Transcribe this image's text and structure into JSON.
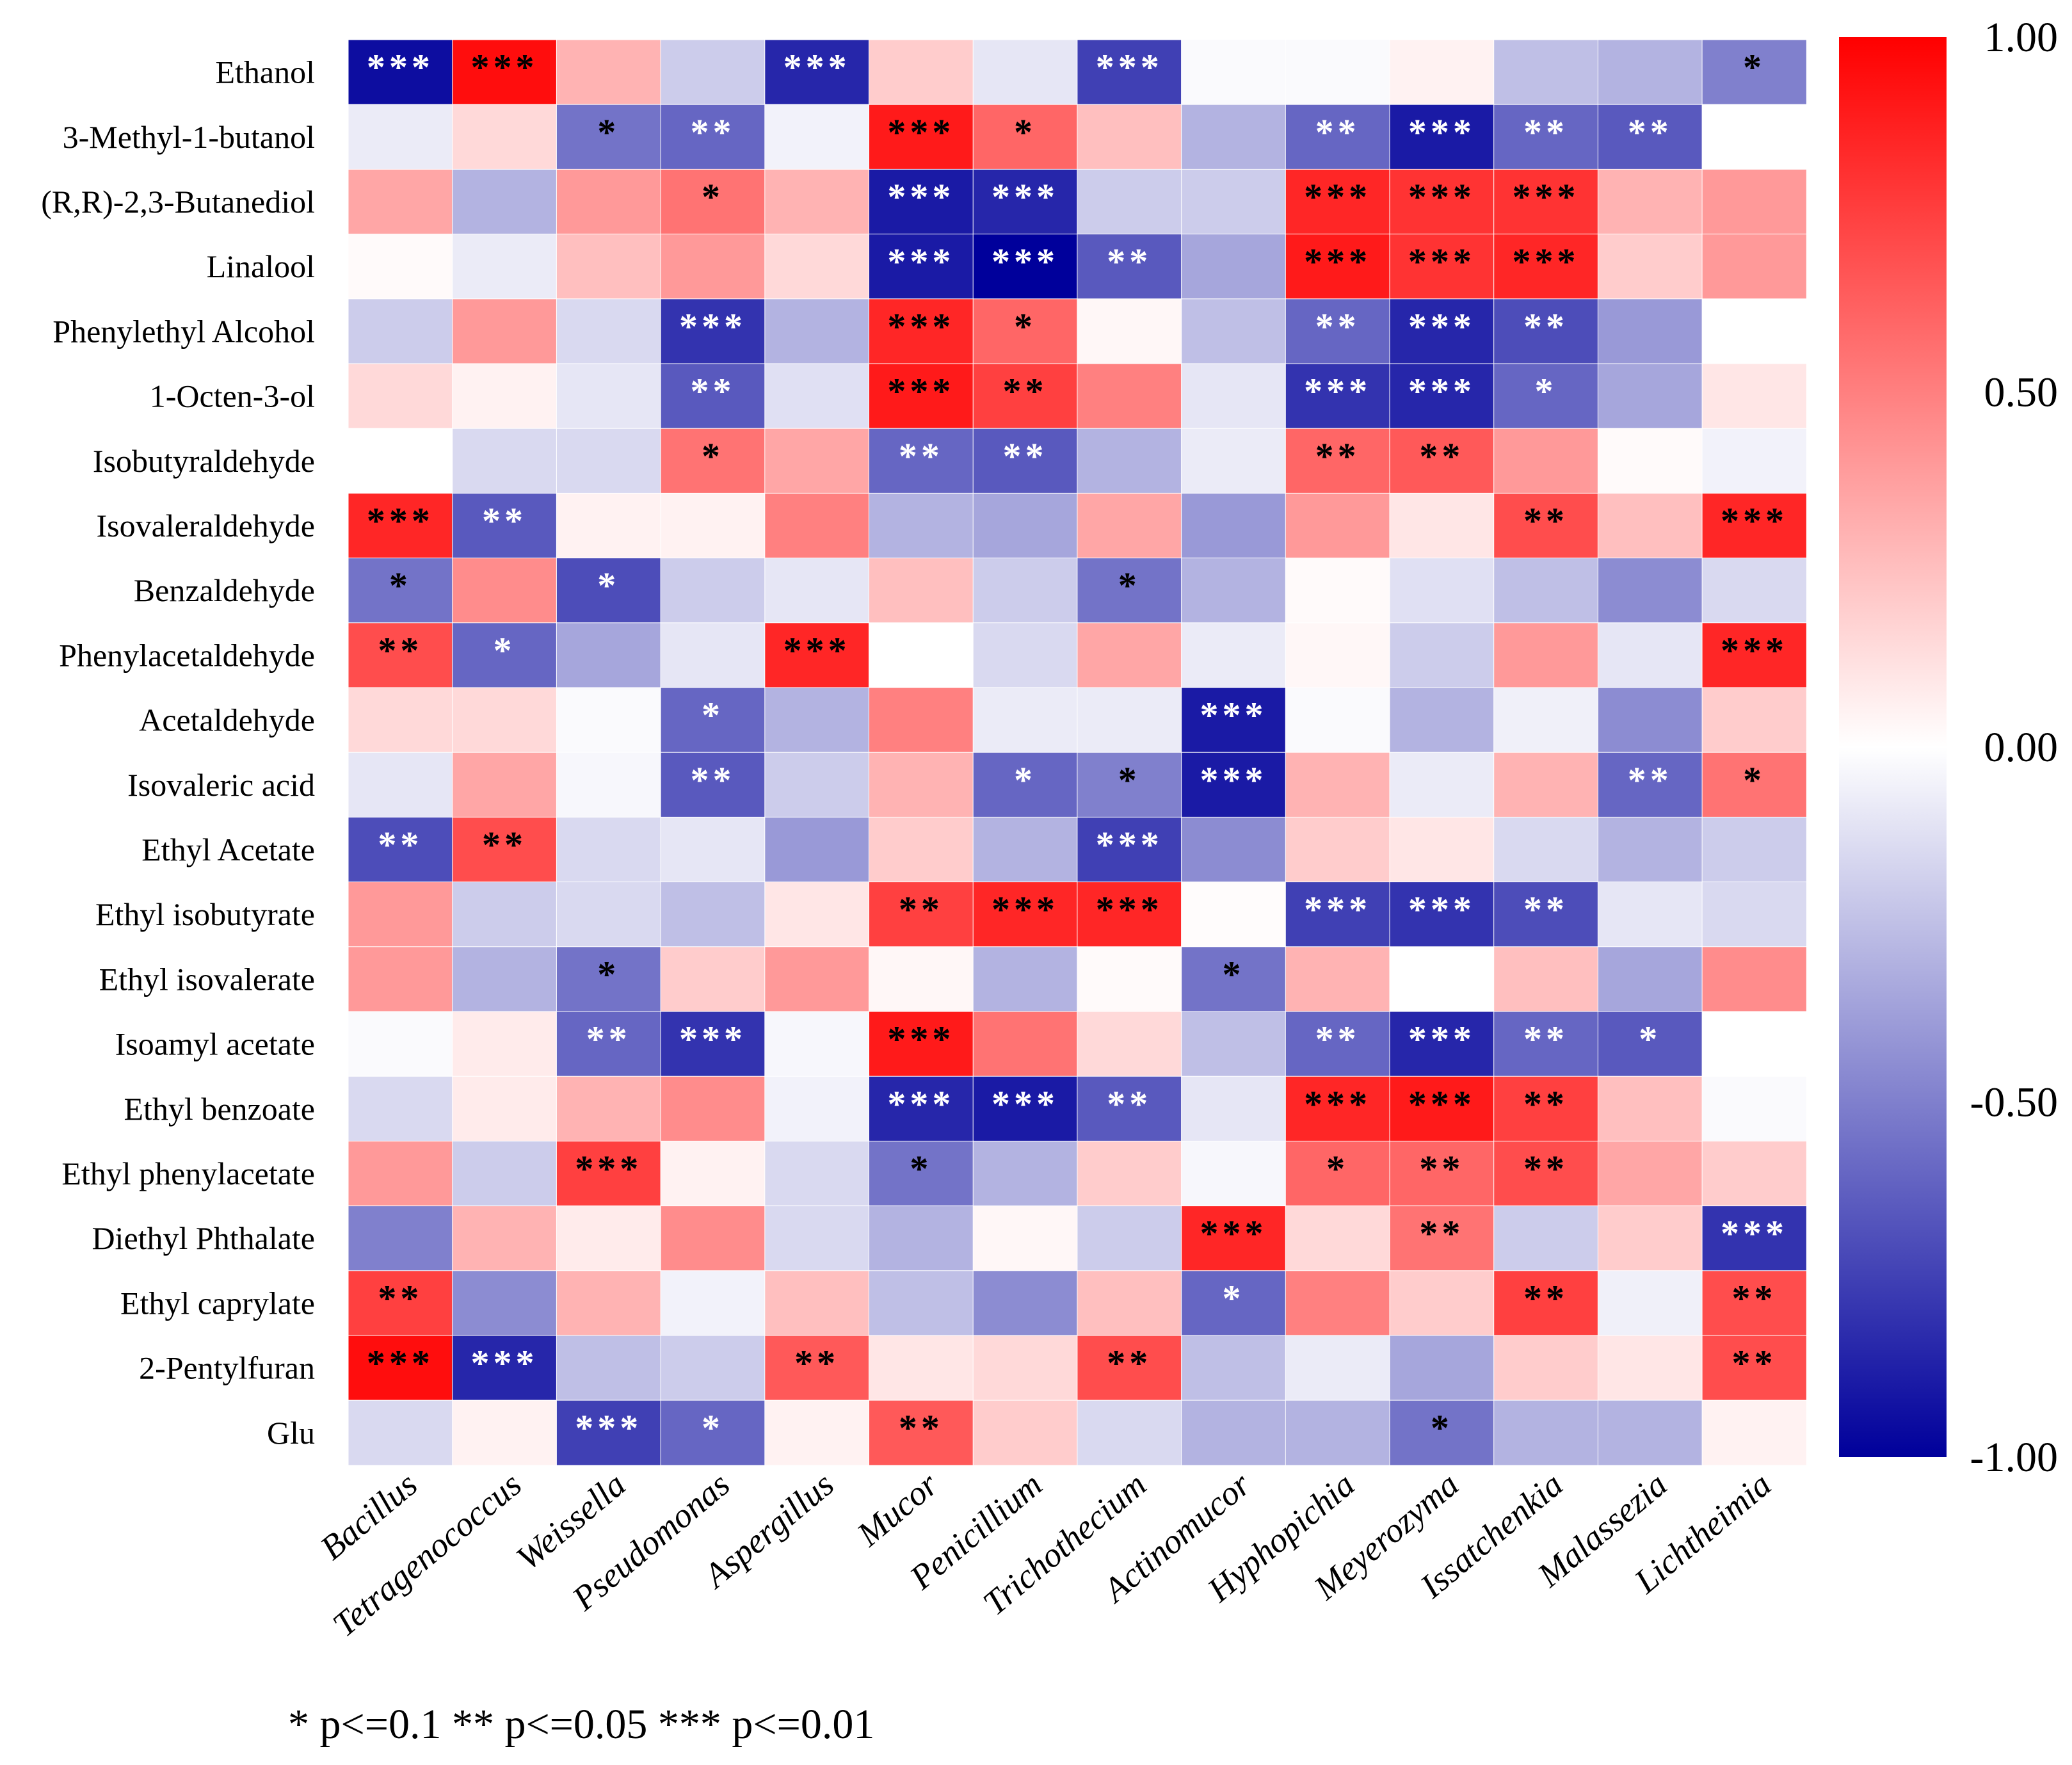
{
  "chart_data": {
    "type": "heatmap",
    "rows": [
      "Ethanol",
      "3-Methyl-1-butanol",
      "(R,R)-2,3-Butanediol",
      "Linalool",
      "Phenylethyl Alcohol",
      "1-Octen-3-ol",
      "Isobutyraldehyde",
      "Isovaleraldehyde",
      "Benzaldehyde",
      "Phenylacetaldehyde",
      "Acetaldehyde",
      "Isovaleric acid",
      "Ethyl Acetate",
      "Ethyl isobutyrate",
      "Ethyl isovalerate",
      "Isoamyl acetate",
      "Ethyl benzoate",
      "Ethyl phenylacetate",
      "Diethyl Phthalate",
      "Ethyl caprylate",
      "2-Pentylfuran",
      "Glu"
    ],
    "columns": [
      "Bacillus",
      "Tetragenococcus",
      "Weissella",
      "Pseudomonas",
      "Aspergillus",
      "Mucor",
      "Penicillium",
      "Trichothecium",
      "Actinomucor",
      "Hyphopichia",
      "Meyerozyma",
      "Issatchenkia",
      "Malassezia",
      "Lichtheimia"
    ],
    "values": [
      [
        -0.95,
        0.95,
        0.3,
        -0.2,
        -0.85,
        0.2,
        -0.1,
        -0.75,
        -0.02,
        -0.02,
        0.05,
        -0.25,
        -0.3,
        -0.5
      ],
      [
        -0.08,
        0.15,
        -0.55,
        -0.6,
        -0.05,
        0.9,
        0.6,
        0.25,
        -0.3,
        -0.6,
        -0.9,
        -0.6,
        -0.65,
        0.0
      ],
      [
        0.35,
        -0.3,
        0.4,
        0.55,
        0.3,
        -0.9,
        -0.85,
        -0.2,
        -0.2,
        0.85,
        0.8,
        0.8,
        0.3,
        0.4
      ],
      [
        0.02,
        -0.08,
        0.25,
        0.4,
        0.15,
        -0.9,
        -1.0,
        -0.65,
        -0.35,
        0.9,
        0.8,
        0.85,
        0.2,
        0.4
      ],
      [
        -0.2,
        0.4,
        -0.15,
        -0.8,
        -0.3,
        0.85,
        0.6,
        0.03,
        -0.25,
        -0.6,
        -0.85,
        -0.7,
        -0.4,
        0.0
      ],
      [
        0.15,
        0.05,
        -0.1,
        -0.65,
        -0.12,
        0.9,
        0.75,
        0.5,
        -0.1,
        -0.8,
        -0.85,
        -0.6,
        -0.35,
        0.1
      ],
      [
        0.0,
        -0.15,
        -0.15,
        0.55,
        0.35,
        -0.6,
        -0.65,
        -0.3,
        -0.08,
        0.6,
        0.65,
        0.4,
        0.02,
        -0.05
      ],
      [
        0.85,
        -0.65,
        0.05,
        0.05,
        0.5,
        -0.3,
        -0.35,
        0.35,
        -0.4,
        0.4,
        0.1,
        0.7,
        0.25,
        0.85
      ],
      [
        -0.55,
        0.45,
        -0.7,
        -0.2,
        -0.1,
        0.25,
        -0.2,
        -0.55,
        -0.3,
        0.02,
        -0.12,
        -0.25,
        -0.45,
        -0.15
      ],
      [
        0.7,
        -0.6,
        -0.35,
        -0.1,
        0.85,
        0.0,
        -0.15,
        0.35,
        -0.08,
        0.03,
        -0.2,
        0.4,
        -0.1,
        0.85
      ],
      [
        0.15,
        0.15,
        -0.02,
        -0.6,
        -0.3,
        0.5,
        -0.08,
        -0.08,
        -0.9,
        -0.02,
        -0.3,
        -0.06,
        -0.45,
        0.2
      ],
      [
        -0.1,
        0.35,
        -0.03,
        -0.65,
        -0.2,
        0.3,
        -0.6,
        -0.5,
        -0.9,
        0.3,
        -0.08,
        0.3,
        -0.6,
        0.55
      ],
      [
        -0.7,
        0.7,
        -0.15,
        -0.1,
        -0.4,
        0.2,
        -0.3,
        -0.75,
        -0.45,
        0.2,
        0.1,
        -0.15,
        -0.3,
        -0.2
      ],
      [
        0.4,
        -0.2,
        -0.15,
        -0.25,
        0.1,
        0.75,
        0.85,
        0.85,
        0.01,
        -0.75,
        -0.8,
        -0.7,
        -0.1,
        -0.15
      ],
      [
        0.4,
        -0.3,
        -0.55,
        0.2,
        0.4,
        0.03,
        -0.3,
        0.02,
        -0.55,
        0.3,
        0.0,
        0.25,
        -0.35,
        0.45
      ],
      [
        -0.02,
        0.08,
        -0.6,
        -0.8,
        -0.03,
        0.9,
        0.55,
        0.15,
        -0.25,
        -0.6,
        -0.85,
        -0.6,
        -0.65,
        0.0
      ],
      [
        -0.15,
        0.08,
        0.3,
        0.45,
        -0.05,
        -0.85,
        -0.9,
        -0.65,
        -0.1,
        0.85,
        0.9,
        0.75,
        0.25,
        -0.02
      ],
      [
        0.4,
        -0.2,
        0.75,
        0.05,
        -0.15,
        -0.55,
        -0.3,
        0.2,
        -0.03,
        0.6,
        0.6,
        0.7,
        0.35,
        0.2
      ],
      [
        -0.5,
        0.3,
        0.08,
        0.45,
        -0.15,
        -0.3,
        0.03,
        -0.2,
        0.85,
        0.15,
        0.55,
        -0.2,
        0.2,
        -0.8
      ],
      [
        0.75,
        -0.45,
        0.3,
        -0.05,
        0.25,
        -0.25,
        -0.45,
        0.25,
        -0.6,
        0.5,
        0.2,
        0.75,
        -0.06,
        0.7
      ],
      [
        0.95,
        -0.85,
        -0.25,
        -0.2,
        0.65,
        0.1,
        0.15,
        0.7,
        -0.25,
        -0.08,
        -0.35,
        0.2,
        0.1,
        0.7
      ],
      [
        -0.15,
        0.05,
        -0.75,
        -0.6,
        0.05,
        0.65,
        0.2,
        -0.15,
        -0.3,
        -0.3,
        -0.55,
        -0.3,
        -0.3,
        0.05
      ]
    ],
    "significance": [
      [
        "***",
        "***",
        "",
        "",
        "***",
        "",
        "",
        "***",
        "",
        "",
        "",
        "",
        "",
        "*"
      ],
      [
        "",
        "",
        "*",
        "**",
        "",
        "***",
        "*",
        "",
        "",
        "**",
        "***",
        "**",
        "**",
        ""
      ],
      [
        "",
        "",
        "",
        "*",
        "",
        "***",
        "***",
        "",
        "",
        "***",
        "***",
        "***",
        "",
        ""
      ],
      [
        "",
        "",
        "",
        "",
        "",
        "***",
        "***",
        "**",
        "",
        "***",
        "***",
        "***",
        "",
        ""
      ],
      [
        "",
        "",
        "",
        "***",
        "",
        "***",
        "*",
        "",
        "",
        "**",
        "***",
        "**",
        "",
        ""
      ],
      [
        "",
        "",
        "",
        "**",
        "",
        "***",
        "**",
        "",
        "",
        "***",
        "***",
        "*",
        "",
        ""
      ],
      [
        "",
        "",
        "",
        "*",
        "",
        "**",
        "**",
        "",
        "",
        "**",
        "**",
        "",
        "",
        ""
      ],
      [
        "***",
        "**",
        "",
        "",
        "",
        "",
        "",
        "",
        "",
        "",
        "",
        "**",
        "",
        "***"
      ],
      [
        "*",
        "",
        "*",
        "",
        "",
        "",
        "",
        "*",
        "",
        "",
        "",
        "",
        "",
        ""
      ],
      [
        "**",
        "*",
        "",
        "",
        "***",
        "",
        "",
        "",
        "",
        "",
        "",
        "",
        "",
        "***"
      ],
      [
        "",
        "",
        "",
        "*",
        "",
        "",
        "",
        "",
        "***",
        "",
        "",
        "",
        "",
        ""
      ],
      [
        "",
        "",
        "",
        "**",
        "",
        "",
        "*",
        "*",
        "***",
        "",
        "",
        "",
        "**",
        "*"
      ],
      [
        "**",
        "**",
        "",
        "",
        "",
        "",
        "",
        "***",
        "",
        "",
        "",
        "",
        "",
        ""
      ],
      [
        "",
        "",
        "",
        "",
        "",
        "**",
        "***",
        "***",
        "",
        "***",
        "***",
        "**",
        "",
        ""
      ],
      [
        "",
        "",
        "*",
        "",
        "",
        "",
        "",
        "",
        "*",
        "",
        "",
        "",
        "",
        ""
      ],
      [
        "",
        "",
        "**",
        "***",
        "",
        "***",
        "",
        "",
        "",
        "**",
        "***",
        "**",
        "*",
        ""
      ],
      [
        "",
        "",
        "",
        "",
        "",
        "***",
        "***",
        "**",
        "",
        "***",
        "***",
        "**",
        "",
        ""
      ],
      [
        "",
        "",
        "***",
        "",
        "",
        "*",
        "",
        "",
        "",
        "*",
        "**",
        "**",
        "",
        ""
      ],
      [
        "",
        "",
        "",
        "",
        "",
        "",
        "",
        "",
        "***",
        "",
        "**",
        "",
        "",
        "***"
      ],
      [
        "**",
        "",
        "",
        "",
        "",
        "",
        "",
        "",
        "*",
        "",
        "",
        "**",
        "",
        "**"
      ],
      [
        "***",
        "***",
        "",
        "",
        "**",
        "",
        "",
        "**",
        "",
        "",
        "",
        "",
        "",
        "**"
      ],
      [
        "",
        "",
        "***",
        "*",
        "",
        "**",
        "",
        "",
        "",
        "",
        "*",
        "",
        "",
        ""
      ]
    ],
    "colorbar": {
      "min": -1.0,
      "max": 1.0,
      "ticks": [
        "1.00",
        "0.50",
        "0.00",
        "-0.50",
        "-1.00"
      ],
      "colors": {
        "low": "#00009b",
        "mid": "#ffffff",
        "high": "#ff0000"
      }
    },
    "legend_text": "*  p<=0.1   **  p<=0.05   ***  p<=0.01"
  }
}
